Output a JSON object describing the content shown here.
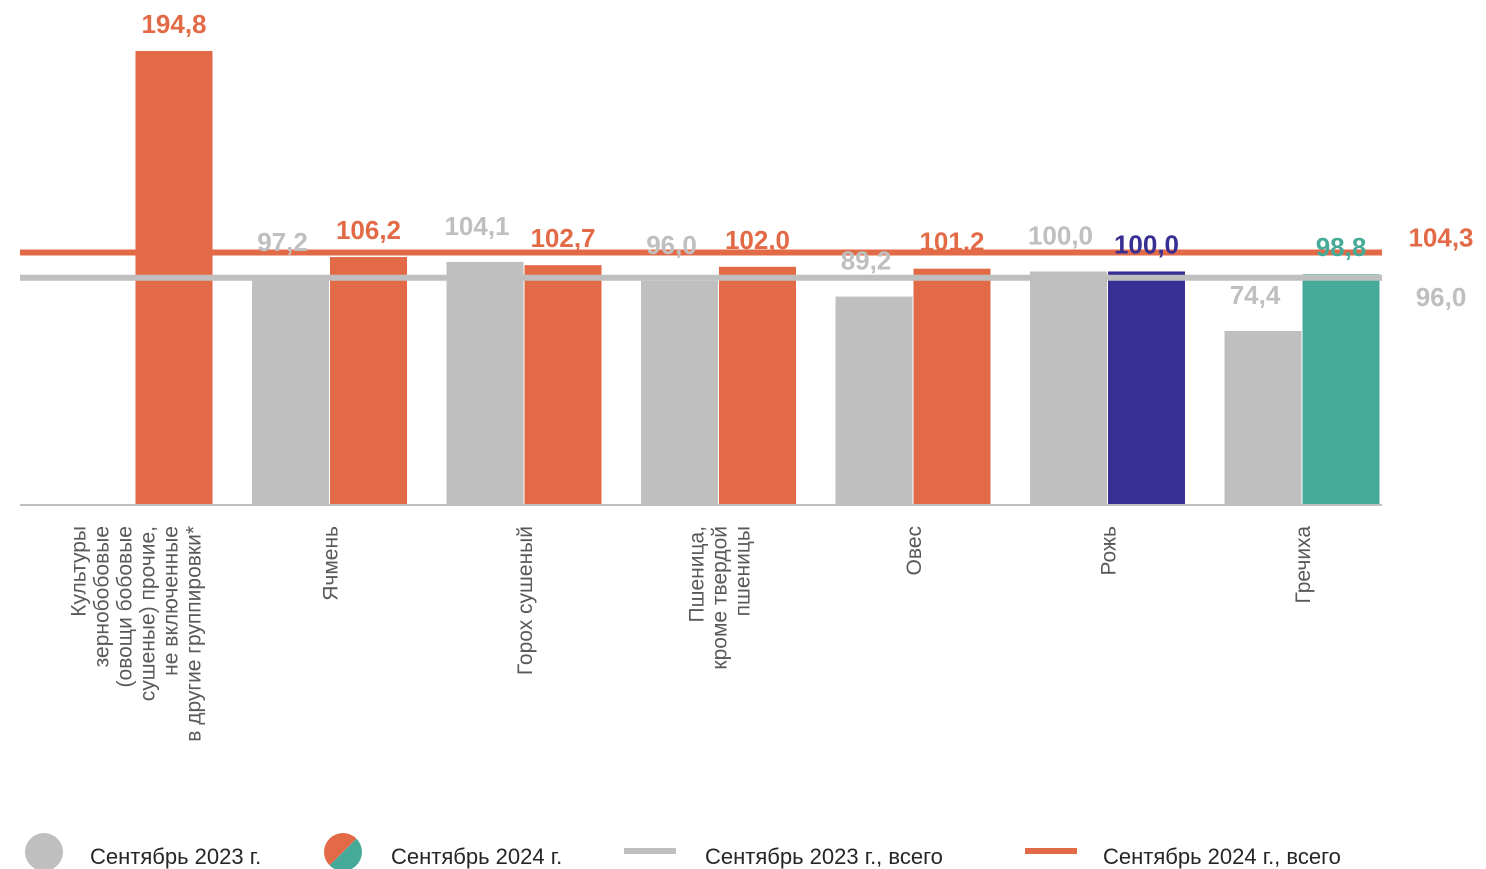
{
  "chart_data": {
    "type": "bar",
    "categories": [
      [
        "Культуры",
        "зернобобовые",
        "(овощи бобовые",
        "сушеные) прочие,",
        "не включенные",
        "в другие группировки*"
      ],
      [
        "Ячмень"
      ],
      [
        "Горох сушеный"
      ],
      [
        "Пшеница,",
        "кроме твердой",
        "пшеницы"
      ],
      [
        "Овес"
      ],
      [
        "Рожь"
      ],
      [
        "Гречиха"
      ]
    ],
    "series": [
      {
        "name": "Сентябрь 2023 г.",
        "values": [
          null,
          97.2,
          104.1,
          96.0,
          89.2,
          100.0,
          74.4
        ],
        "labels": [
          "",
          "97,2",
          "104,1",
          "96,0",
          "89,2",
          "100,0",
          "74,4"
        ],
        "color": "#bfbfbf"
      },
      {
        "name": "Сентябрь 2024 г.",
        "values": [
          194.8,
          106.2,
          102.7,
          102.0,
          101.2,
          100.0,
          98.8
        ],
        "labels": [
          "194,8",
          "106,2",
          "102,7",
          "102,0",
          "101,2",
          "100,0",
          "98,8"
        ],
        "colors": [
          "#e36a46",
          "#e36a46",
          "#e36a46",
          "#e36a46",
          "#e36a46",
          "#372f93",
          "#45aa98"
        ]
      }
    ],
    "reference_lines": [
      {
        "name": "Сентябрь 2023 г., всего",
        "value": 96.0,
        "label": "96,0",
        "color": "#bfbfbf"
      },
      {
        "name": "Сентябрь 2024 г., всего",
        "value": 104.3,
        "label": "104,3",
        "color": "#e36a46"
      }
    ],
    "ylim": [
      0,
      194.8
    ],
    "legend_position": "bottom",
    "legend": [
      {
        "label": "Сентябрь 2023 г.",
        "marker": "circle",
        "color": "#bfbfbf"
      },
      {
        "label": "Сентябрь 2024 г.",
        "marker": "split-circle",
        "colors": [
          "#e36a46",
          "#45aa98"
        ]
      },
      {
        "label": "Сентябрь 2023 г., всего",
        "marker": "line",
        "color": "#bfbfbf"
      },
      {
        "label": "Сентябрь 2024 г., всего",
        "marker": "line",
        "color": "#e36a46"
      }
    ],
    "axis_color": "#bfbfbf"
  }
}
